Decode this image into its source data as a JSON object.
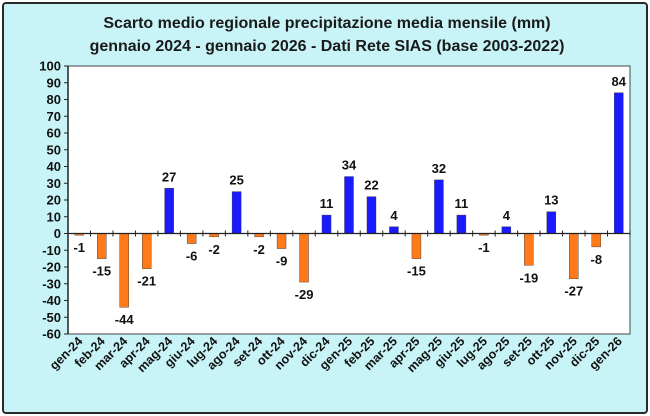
{
  "chart_data": {
    "type": "bar",
    "title": "Scarto medio regionale precipitazione media mensile (mm)",
    "subtitle": "gennaio 2024 - gennaio 2026 - Dati Rete SIAS (base 2003-2022)",
    "categories": [
      "gen-24",
      "feb-24",
      "mar-24",
      "apr-24",
      "mag-24",
      "giu-24",
      "lug-24",
      "ago-24",
      "set-24",
      "ott-24",
      "nov-24",
      "dic-24",
      "gen-25",
      "feb-25",
      "mar-25",
      "apr-25",
      "mag-25",
      "giu-25",
      "lug-25",
      "ago-25",
      "set-25",
      "ott-25",
      "nov-25",
      "dic-25",
      "gen-26"
    ],
    "values": [
      -1,
      -15,
      -44,
      -21,
      27,
      -6,
      -2,
      25,
      -2,
      -9,
      -29,
      11,
      34,
      22,
      4,
      -15,
      32,
      11,
      -1,
      4,
      -19,
      13,
      -27,
      -8,
      84
    ],
    "ylim": [
      -60,
      100
    ],
    "yticks": [
      -60,
      -50,
      -40,
      -30,
      -20,
      -10,
      0,
      10,
      20,
      30,
      40,
      50,
      60,
      70,
      80,
      90,
      100
    ],
    "grid": false,
    "legend": "none",
    "colors": {
      "positive": "#1a1aff",
      "negative": "#ff7a1a",
      "background": "#c8f4f7",
      "plot_background": "#ffffff"
    }
  }
}
